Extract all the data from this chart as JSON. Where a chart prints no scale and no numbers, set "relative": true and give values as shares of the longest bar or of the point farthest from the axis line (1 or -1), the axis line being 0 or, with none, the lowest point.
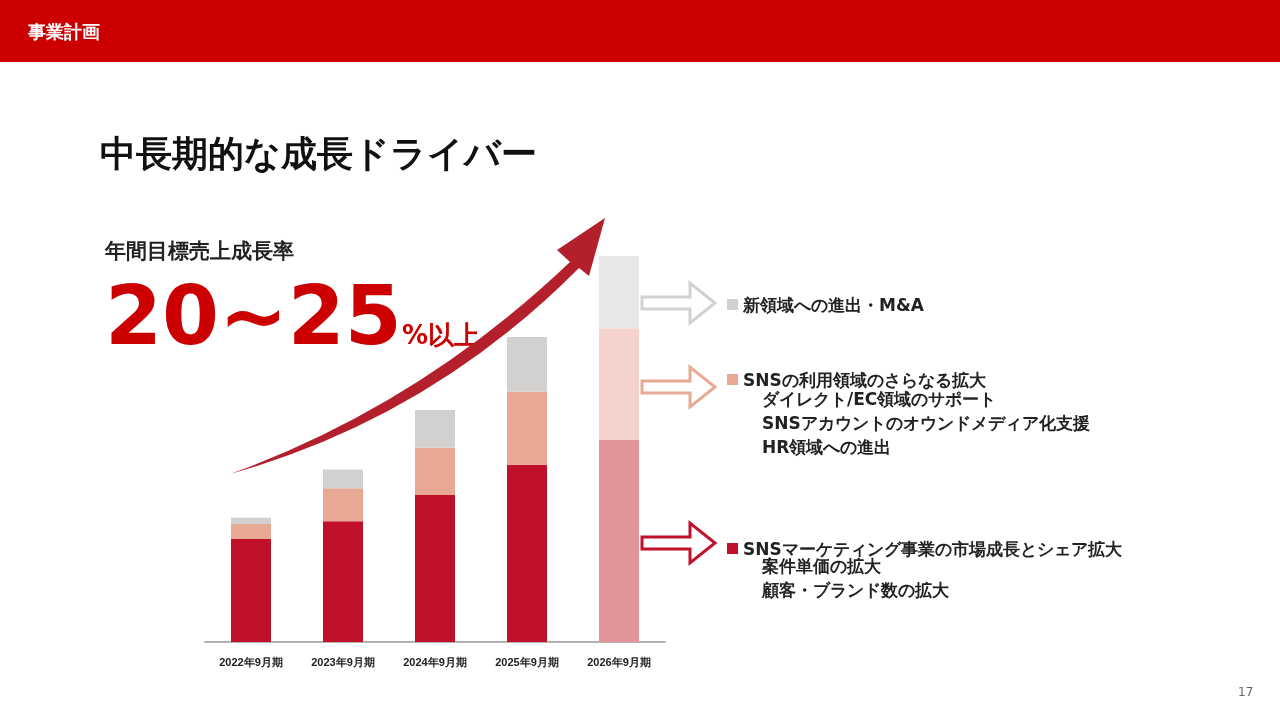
{
  "chart_data": {
    "type": "bar",
    "title": "中長期的な成長ドライバー",
    "relative": true,
    "stacked": true,
    "legend": "right",
    "categories": [
      "2022年9月期",
      "2023年9月期",
      "2024年9月期",
      "2025年9月期",
      "2026年9月期"
    ],
    "series": [
      {
        "name": "SNSマーケティング事業の市場成長とシェア拡大",
        "color": "#c0102a",
        "colors": [
          "#c0102a",
          "#c0102a",
          "#c0102a",
          "#c0102a",
          "#e3939a"
        ],
        "values": [
          0.267,
          0.313,
          0.381,
          0.459,
          0.523
        ]
      },
      {
        "name": "SNSの利用領域のさらなる拡大",
        "color": "#e8a994",
        "colors": [
          "#e8a994",
          "#e8a994",
          "#e8a994",
          "#e8a994",
          "#f5d3cc"
        ],
        "values": [
          0.039,
          0.085,
          0.122,
          0.189,
          0.29
        ]
      },
      {
        "name": "新領域への進出・M&A",
        "color": "#d3d0d0",
        "colors": [
          "#d3d0d0",
          "#d3d0d0",
          "#d3d0d0",
          "#d3d0d0",
          "#e8e6e6"
        ],
        "values": [
          0.016,
          0.049,
          0.098,
          0.142,
          0.187
        ]
      }
    ],
    "annotations": [
      "事業計画",
      "年間目標売上成長率",
      "20~25%以上",
      "ダイレクト/EC領域のサポート",
      "SNSアカウントのオウンドメディア化支援",
      "HR領域への進出",
      "案件単価の拡大",
      "顧客・ブランド数の拡大",
      "17"
    ]
  }
}
